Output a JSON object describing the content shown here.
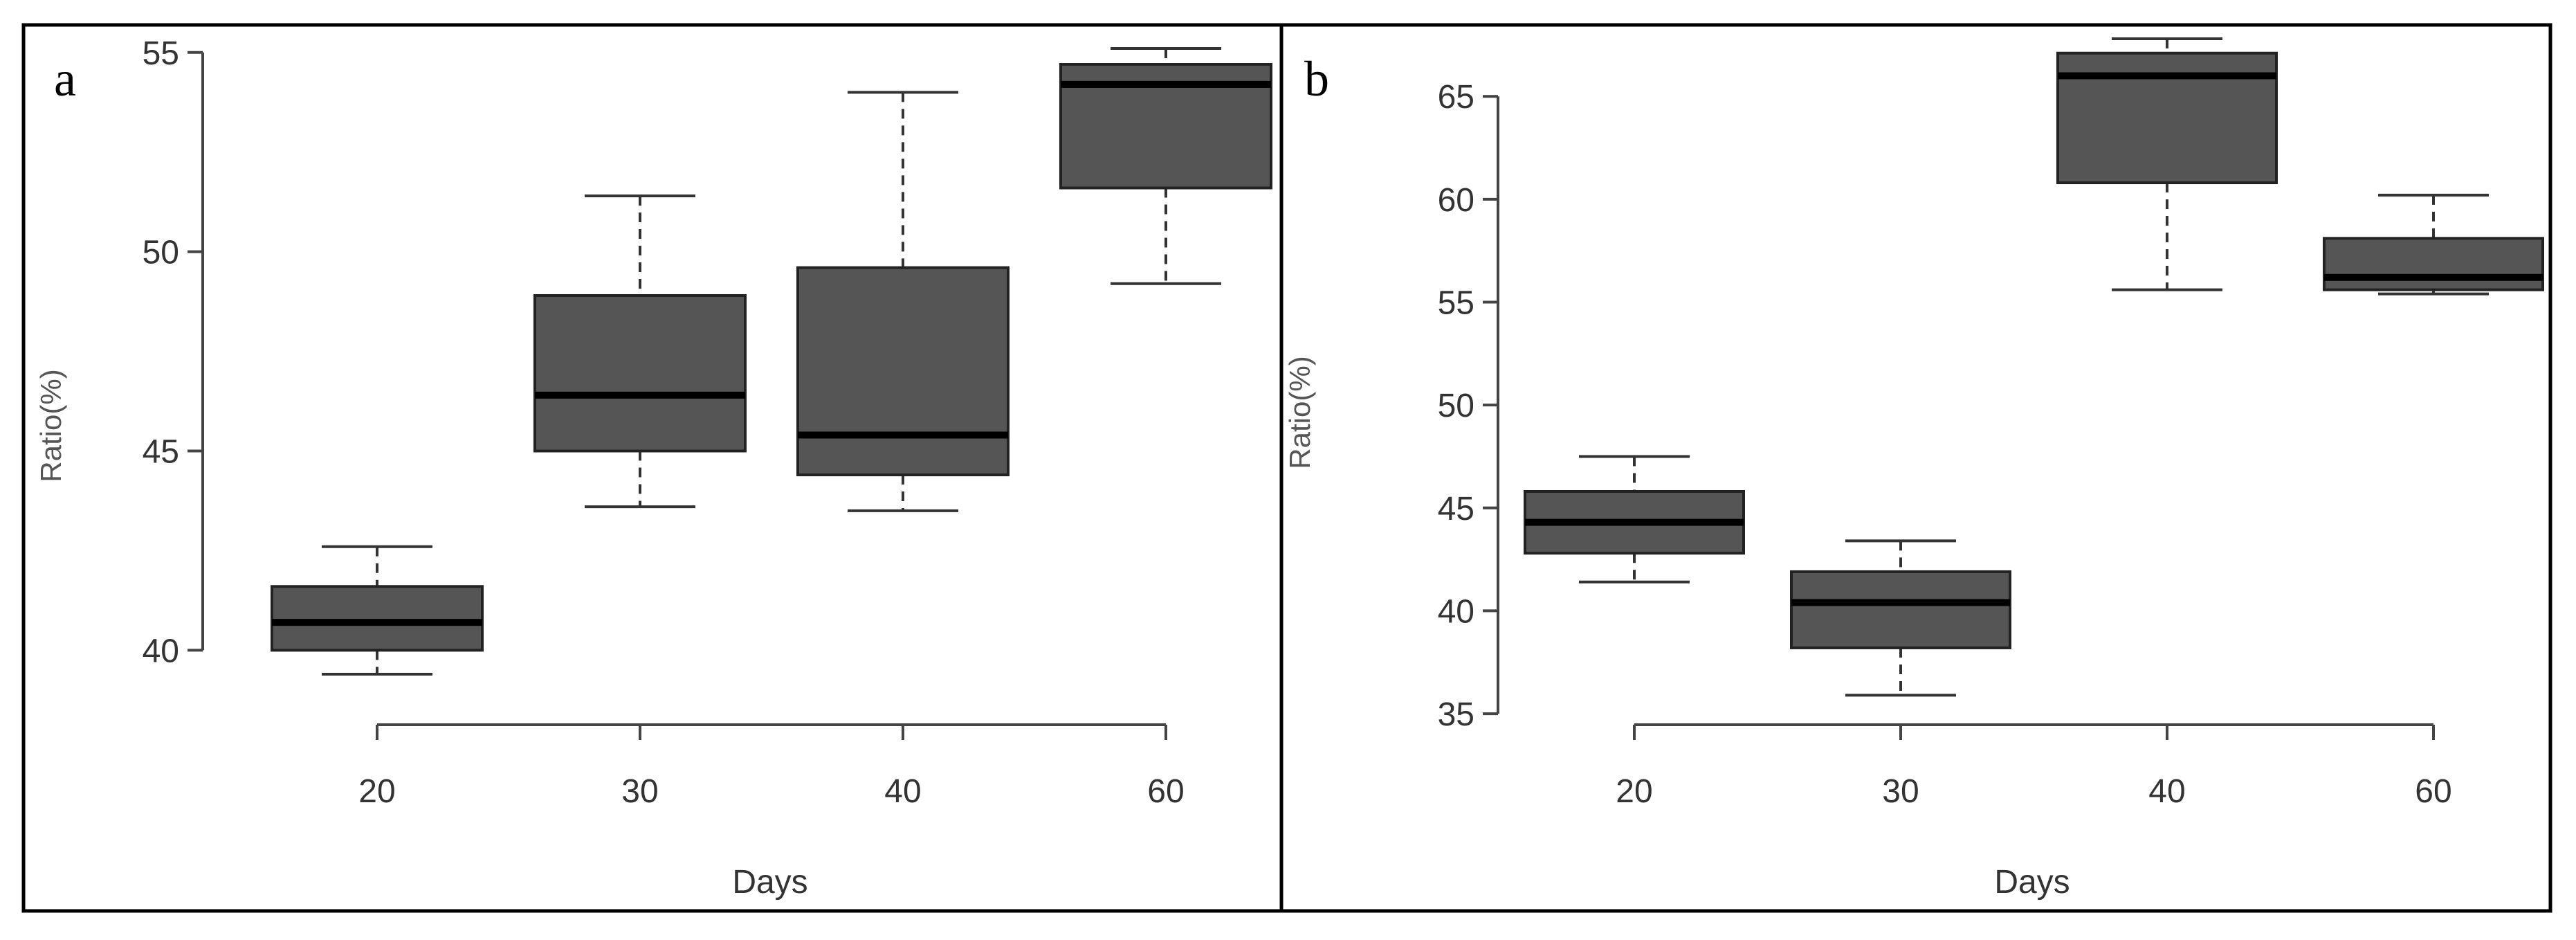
{
  "chart_data": [
    {
      "type": "box",
      "panel_label": "a",
      "xlabel": "Days",
      "ylabel": "Ratio(%)",
      "ylim": [
        38.6,
        55.1
      ],
      "yticks": [
        40,
        45,
        50,
        55
      ],
      "categories": [
        "20",
        "30",
        "40",
        "60"
      ],
      "boxes": [
        {
          "category": "20",
          "min": 39.4,
          "q1": 40.0,
          "median": 40.7,
          "q3": 41.6,
          "max": 42.6
        },
        {
          "category": "30",
          "min": 43.6,
          "q1": 45.0,
          "median": 46.4,
          "q3": 48.9,
          "max": 51.4
        },
        {
          "category": "40",
          "min": 43.5,
          "q1": 44.4,
          "median": 45.4,
          "q3": 49.6,
          "max": 54.0
        },
        {
          "category": "60",
          "min": 49.2,
          "q1": 51.6,
          "median": 54.2,
          "q3": 54.7,
          "max": 55.1
        }
      ],
      "box_color": "#555555",
      "grid": false
    },
    {
      "type": "box",
      "panel_label": "b",
      "xlabel": "Days",
      "ylabel": "Ratio(%)",
      "ylim": [
        34.7,
        68.0
      ],
      "yticks": [
        35,
        40,
        45,
        50,
        55,
        60,
        65
      ],
      "categories": [
        "20",
        "30",
        "40",
        "60"
      ],
      "boxes": [
        {
          "category": "20",
          "min": 41.4,
          "q1": 42.8,
          "median": 44.3,
          "q3": 45.8,
          "max": 47.5
        },
        {
          "category": "30",
          "min": 35.9,
          "q1": 38.2,
          "median": 40.4,
          "q3": 41.9,
          "max": 43.4
        },
        {
          "category": "40",
          "min": 55.6,
          "q1": 60.8,
          "median": 66.0,
          "q3": 67.1,
          "max": 67.8
        },
        {
          "category": "60",
          "min": 55.4,
          "q1": 55.6,
          "median": 56.2,
          "q3": 58.1,
          "max": 60.2
        }
      ],
      "box_color": "#555555",
      "grid": false
    }
  ]
}
